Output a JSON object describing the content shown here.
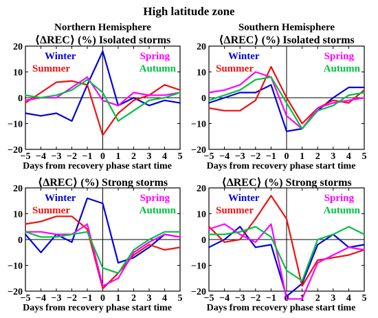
{
  "figure_title": "High latitude zone",
  "colors": {
    "winter": "#0000dd",
    "summer": "#ee1111",
    "spring": "#ff00ff",
    "autumn": "#00c040",
    "axis": "#000000"
  },
  "chart_data": [
    {
      "type": "line",
      "hemisphere": "Northern Hemisphere",
      "title": "⟨ΔREC⟩ (%) Isolated storms",
      "xlabel": "Days from recovery phase start time",
      "ylabel": "",
      "xlim": [
        -5,
        5
      ],
      "ylim": [
        -20,
        20
      ],
      "x_ticks": [
        -5,
        -4,
        -3,
        -2,
        -1,
        0,
        1,
        2,
        3,
        4,
        5
      ],
      "y_ticks": [
        -20,
        -10,
        0,
        10,
        20
      ],
      "x": [
        -5,
        -4,
        -3,
        -2,
        -1,
        0,
        1,
        2,
        3,
        4,
        5
      ],
      "legend_placement": "top-left and top-right",
      "series": [
        {
          "name": "Winter",
          "color": "#0000dd",
          "values": [
            -6,
            -7,
            -6,
            -9,
            5,
            18,
            -3,
            0,
            -3,
            -1,
            -2
          ]
        },
        {
          "name": "Summer",
          "color": "#ee1111",
          "values": [
            -2,
            2,
            6,
            6.5,
            5,
            -14.5,
            -6,
            -1,
            1,
            5,
            3
          ]
        },
        {
          "name": "Spring",
          "color": "#ff00ff",
          "values": [
            -1,
            0,
            0,
            4,
            8,
            -1,
            -3,
            2,
            1,
            1,
            2
          ]
        },
        {
          "name": "Autumn",
          "color": "#00c040",
          "values": [
            1,
            0,
            1,
            3,
            7,
            2,
            -9,
            -5,
            -1,
            0,
            2
          ]
        }
      ]
    },
    {
      "type": "line",
      "hemisphere": "Southern Hemisphere",
      "title": "⟨ΔREC⟩ (%) Isolated storms",
      "xlabel": "Days from recovery phase start time",
      "ylabel": "",
      "xlim": [
        -5,
        5
      ],
      "ylim": [
        -20,
        20
      ],
      "x_ticks": [
        -5,
        -4,
        -3,
        -2,
        -1,
        0,
        1,
        2,
        3,
        4,
        5
      ],
      "y_ticks": [
        -20,
        -10,
        0,
        10,
        20
      ],
      "x": [
        -5,
        -4,
        -3,
        -2,
        -1,
        0,
        1,
        2,
        3,
        4,
        5
      ],
      "legend_placement": "top-left and top-right",
      "series": [
        {
          "name": "Winter",
          "color": "#0000dd",
          "values": [
            -2,
            0,
            2,
            2,
            5,
            -13,
            -12,
            -5,
            0,
            4,
            4
          ]
        },
        {
          "name": "Summer",
          "color": "#ee1111",
          "values": [
            -4,
            -5,
            -5,
            -1,
            12,
            0,
            -10,
            -4,
            -1,
            -2,
            3
          ]
        },
        {
          "name": "Spring",
          "color": "#ff00ff",
          "values": [
            2,
            3,
            5,
            10,
            8,
            -7,
            -12,
            -4,
            -2,
            -1,
            0
          ]
        },
        {
          "name": "Autumn",
          "color": "#00c040",
          "values": [
            -1,
            1,
            3,
            7,
            8,
            -2,
            -12,
            -5,
            -3,
            1,
            2
          ]
        }
      ]
    },
    {
      "type": "line",
      "hemisphere": "",
      "title": "⟨ΔREC⟩ (%) Strong storms",
      "xlabel": "Days from recovery phase start time",
      "ylabel": "",
      "xlim": [
        -5,
        5
      ],
      "ylim": [
        -20,
        20
      ],
      "x_ticks": [
        -5,
        -4,
        -3,
        -2,
        -1,
        0,
        1,
        2,
        3,
        4,
        5
      ],
      "y_ticks": [
        -20,
        -10,
        0,
        10,
        20
      ],
      "x": [
        -5,
        -4,
        -3,
        -2,
        -1,
        0,
        1,
        2,
        3,
        4,
        5
      ],
      "legend_placement": "top-left and top-right",
      "series": [
        {
          "name": "Winter",
          "color": "#0000dd",
          "values": [
            2,
            -5,
            2,
            -1,
            16,
            14,
            -9,
            -7,
            -3,
            2,
            1
          ]
        },
        {
          "name": "Summer",
          "color": "#ee1111",
          "values": [
            6,
            7,
            9,
            9,
            4,
            -19,
            -13,
            -6,
            -2,
            -4,
            -3
          ]
        },
        {
          "name": "Spring",
          "color": "#ff00ff",
          "values": [
            3,
            3,
            2,
            2,
            6,
            -18,
            -15,
            -5,
            -1,
            2,
            1
          ]
        },
        {
          "name": "Autumn",
          "color": "#00c040",
          "values": [
            3,
            1,
            1,
            2,
            3,
            -11,
            -13,
            -4,
            0,
            3,
            3
          ]
        }
      ]
    },
    {
      "type": "line",
      "hemisphere": "",
      "title": "⟨ΔREC⟩ (%) Strong storms",
      "xlabel": "Days from recovery phase start time",
      "ylabel": "",
      "xlim": [
        -5,
        5
      ],
      "ylim": [
        -20,
        20
      ],
      "x_ticks": [
        -5,
        -4,
        -3,
        -2,
        -1,
        0,
        1,
        2,
        3,
        4,
        5
      ],
      "y_ticks": [
        -20,
        -10,
        0,
        10,
        20
      ],
      "x": [
        -5,
        -4,
        -3,
        -2,
        -1,
        0,
        1,
        2,
        3,
        4,
        5
      ],
      "legend_placement": "top-left and top-right",
      "series": [
        {
          "name": "Winter",
          "color": "#0000dd",
          "values": [
            -3,
            0,
            5,
            -3,
            -2,
            -22,
            -17,
            -2,
            2,
            -3,
            -2
          ]
        },
        {
          "name": "Summer",
          "color": "#ee1111",
          "values": [
            5,
            -1,
            0,
            8,
            17,
            8,
            -18,
            -8,
            -7,
            -6,
            -4
          ]
        },
        {
          "name": "Spring",
          "color": "#ff00ff",
          "values": [
            4,
            6,
            2,
            -1,
            6,
            -23,
            -23,
            -9,
            -6,
            -3,
            -4
          ]
        },
        {
          "name": "Autumn",
          "color": "#00c040",
          "values": [
            2,
            2,
            3,
            5,
            1,
            -12,
            -16,
            0,
            2,
            5,
            2
          ]
        }
      ]
    }
  ]
}
